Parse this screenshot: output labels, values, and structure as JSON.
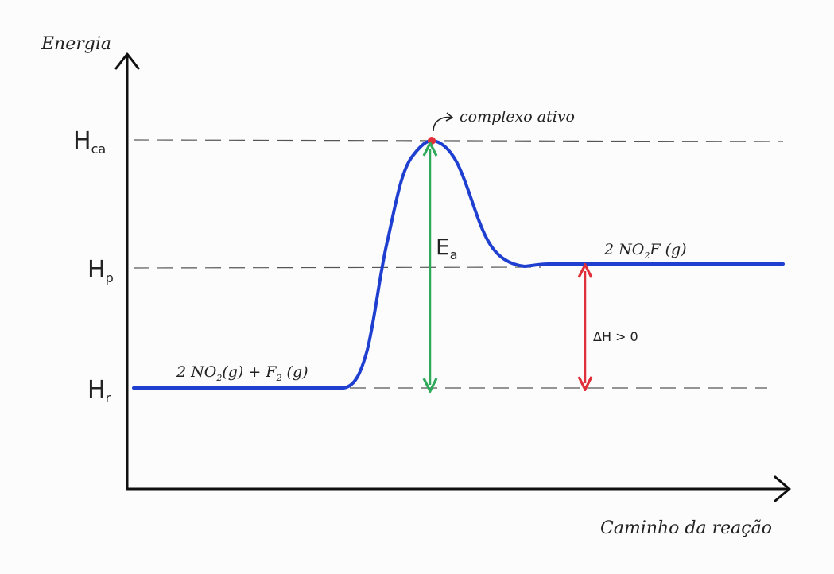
{
  "axes": {
    "y_label": "Energia",
    "x_label": "Caminho da reação"
  },
  "levels": {
    "activated_complex": {
      "main": "H",
      "sub": "ca"
    },
    "products": {
      "main": "H",
      "sub": "p"
    },
    "reactants": {
      "main": "H",
      "sub": "r"
    }
  },
  "labels": {
    "activated_complex": "complexo ativo",
    "activation_energy": {
      "main": "E",
      "sub": "a"
    },
    "reactants": {
      "prefix": "2 NO",
      "sub1": "2",
      "mid": "(g) + F",
      "sub2": "2",
      "suffix": " (g)"
    },
    "products": {
      "prefix": "2 NO",
      "sub1": "2",
      "suffix": "F (g)"
    },
    "enthalpy_change": "ΔH > 0"
  },
  "colors": {
    "curve": "#1f3fd0",
    "activation_arrow": "#2eaa5a",
    "enthalpy_arrow": "#e0303a",
    "peak_point": "#e0303a",
    "axes": "#111111",
    "guide_lines": "#555555"
  }
}
